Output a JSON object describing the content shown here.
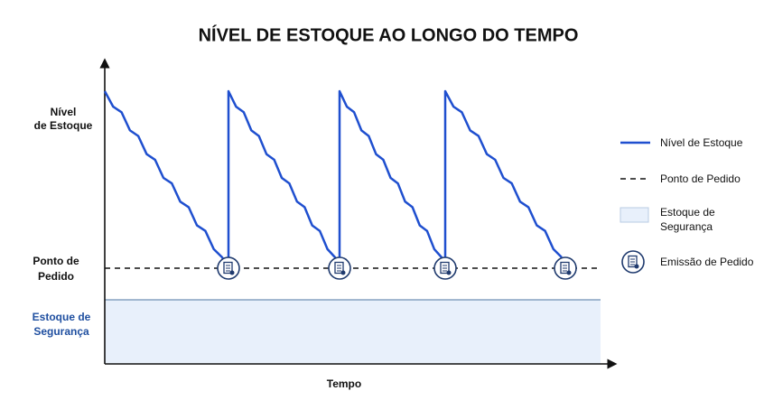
{
  "title": "NÍVEL DE ESTOQUE AO LONGO DO TEMPO",
  "axis_labels": {
    "stock_level": [
      "Nível",
      "de Estoque"
    ],
    "reorder_point": [
      "Ponto de",
      "Pedido"
    ],
    "safety_stock": [
      "Estoque de",
      "Segurança"
    ],
    "time": "Tempo"
  },
  "legend": {
    "stock_level": "Nível de Estoque",
    "reorder_point": "Ponto de Pedido",
    "safety_stock": [
      "Estoque de",
      "Segurança"
    ],
    "order": "Emissão de Pedido"
  }
}
